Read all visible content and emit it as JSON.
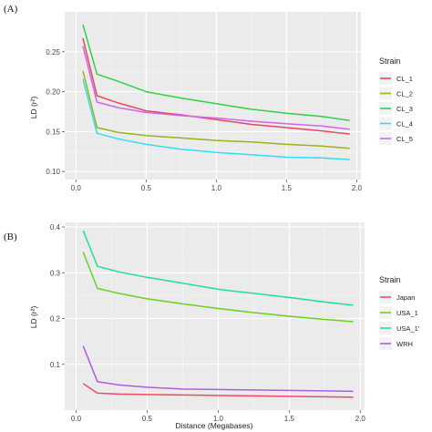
{
  "chart_data": [
    {
      "type": "line",
      "panel": "(A)",
      "ylabel": "LD (r²)",
      "xlabel": "",
      "xlim": [
        -0.08,
        2.03
      ],
      "ylim": [
        0.09,
        0.3
      ],
      "xticks": [
        0.0,
        0.5,
        1.0,
        1.5,
        2.0
      ],
      "xtick_labels": [
        "0.0",
        "0.5",
        "1.0",
        "1.5",
        "2.0"
      ],
      "yticks": [
        0.1,
        0.15,
        0.2,
        0.25
      ],
      "ytick_labels": [
        "0.10",
        "0.15",
        "0.20",
        "0.25"
      ],
      "grid": true,
      "legend": {
        "title": "Strain",
        "placement": "right"
      },
      "x": [
        0.05,
        0.15,
        0.3,
        0.5,
        0.75,
        1.0,
        1.25,
        1.5,
        1.75,
        1.95
      ],
      "series": [
        {
          "name": "CL_1",
          "color": "#e8475f",
          "values": [
            0.267,
            0.195,
            0.186,
            0.176,
            0.171,
            0.165,
            0.159,
            0.155,
            0.151,
            0.147
          ]
        },
        {
          "name": "CL_2",
          "color": "#9bb317",
          "values": [
            0.226,
            0.155,
            0.149,
            0.145,
            0.142,
            0.139,
            0.137,
            0.134,
            0.132,
            0.129
          ]
        },
        {
          "name": "CL_3",
          "color": "#2fd24a",
          "values": [
            0.284,
            0.222,
            0.213,
            0.2,
            0.192,
            0.185,
            0.178,
            0.173,
            0.169,
            0.164
          ]
        },
        {
          "name": "CL_4",
          "color": "#33ddf0",
          "values": [
            0.216,
            0.148,
            0.141,
            0.134,
            0.128,
            0.124,
            0.121,
            0.118,
            0.117,
            0.115
          ]
        },
        {
          "name": "CL_5",
          "color": "#cc66ee",
          "values": [
            0.257,
            0.187,
            0.18,
            0.174,
            0.17,
            0.167,
            0.163,
            0.16,
            0.157,
            0.153
          ]
        }
      ]
    },
    {
      "type": "line",
      "panel": "(B)",
      "ylabel": "LD (r²)",
      "xlabel": "Distance (Megabases)",
      "xlim": [
        -0.08,
        2.03
      ],
      "ylim": [
        0.0,
        0.41
      ],
      "xticks": [
        0.0,
        0.5,
        1.0,
        1.5,
        2.0
      ],
      "xtick_labels": [
        "0.0",
        "0.5",
        "1.0",
        "1.5",
        "2.0"
      ],
      "yticks": [
        0.1,
        0.2,
        0.3,
        0.4
      ],
      "ytick_labels": [
        "0.1",
        "0.2",
        "0.3",
        "0.4"
      ],
      "grid": true,
      "legend": {
        "title": "Strain",
        "placement": "right"
      },
      "x": [
        0.05,
        0.15,
        0.3,
        0.5,
        0.75,
        1.0,
        1.25,
        1.5,
        1.75,
        1.95
      ],
      "series": [
        {
          "name": "Japan",
          "color": "#ee4a6a",
          "values": [
            0.058,
            0.037,
            0.035,
            0.034,
            0.033,
            0.032,
            0.031,
            0.03,
            0.029,
            0.028
          ]
        },
        {
          "name": "USA_1",
          "color": "#6cd11d",
          "values": [
            0.345,
            0.266,
            0.255,
            0.243,
            0.232,
            0.222,
            0.213,
            0.205,
            0.198,
            0.193
          ]
        },
        {
          "name": "USA_1'",
          "color": "#22dd99",
          "values": [
            0.392,
            0.314,
            0.302,
            0.29,
            0.277,
            0.264,
            0.255,
            0.246,
            0.236,
            0.229
          ]
        },
        {
          "name": "WRH",
          "color": "#b05ce0",
          "values": [
            0.14,
            0.062,
            0.055,
            0.05,
            0.046,
            0.045,
            0.044,
            0.043,
            0.042,
            0.041
          ]
        }
      ]
    }
  ]
}
